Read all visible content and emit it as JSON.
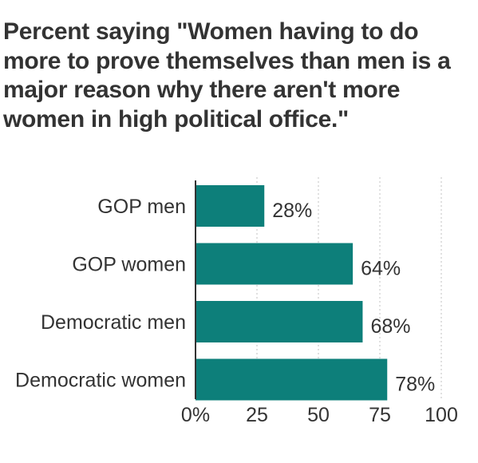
{
  "chart_data": {
    "type": "bar",
    "orientation": "horizontal",
    "title": "Percent saying \"Women having to do more to prove themselves than men is a major reason why there aren't more women in high political office.\"",
    "categories": [
      "GOP men",
      "GOP women",
      "Democratic men",
      "Democratic women"
    ],
    "values": [
      28,
      64,
      68,
      78
    ],
    "value_labels": [
      "28%",
      "64%",
      "68%",
      "78%"
    ],
    "xlim": [
      0,
      100
    ],
    "xticks": [
      0,
      25,
      50,
      75,
      100
    ],
    "xtick_labels": [
      "0%",
      "25",
      "50",
      "75",
      "100"
    ],
    "grid": "vertical dotted",
    "bar_color": "#0d7f7a",
    "text_color": "#333333",
    "grid_color": "#cccccc",
    "axis_color": "#333333",
    "xlabel": "",
    "ylabel": ""
  }
}
